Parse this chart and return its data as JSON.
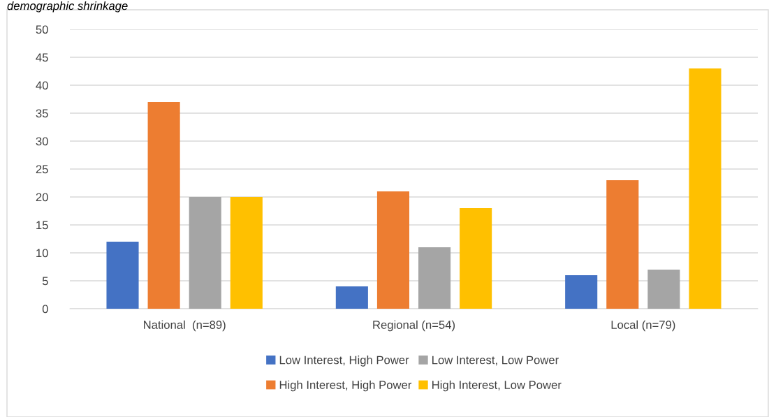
{
  "chart_data": {
    "type": "bar",
    "title": "demographic shrinkage",
    "categories": [
      "National  (n=89)",
      "Regional (n=54)",
      "Local (n=79)"
    ],
    "series": [
      {
        "name": "Low Interest, High Power",
        "color": "#4472c4",
        "values": [
          12,
          4,
          6
        ]
      },
      {
        "name": "High Interest, High Power",
        "color": "#ed7d31",
        "values": [
          37,
          21,
          23
        ]
      },
      {
        "name": "Low Interest, Low Power",
        "color": "#a5a5a5",
        "values": [
          20,
          11,
          7
        ]
      },
      {
        "name": "High Interest, Low Power",
        "color": "#ffc000",
        "values": [
          20,
          18,
          43
        ]
      }
    ],
    "ylim": [
      0,
      50
    ],
    "yticks": [
      0,
      5,
      10,
      15,
      20,
      25,
      30,
      35,
      40,
      45,
      50
    ],
    "grid": "y",
    "legend": "bottom"
  }
}
